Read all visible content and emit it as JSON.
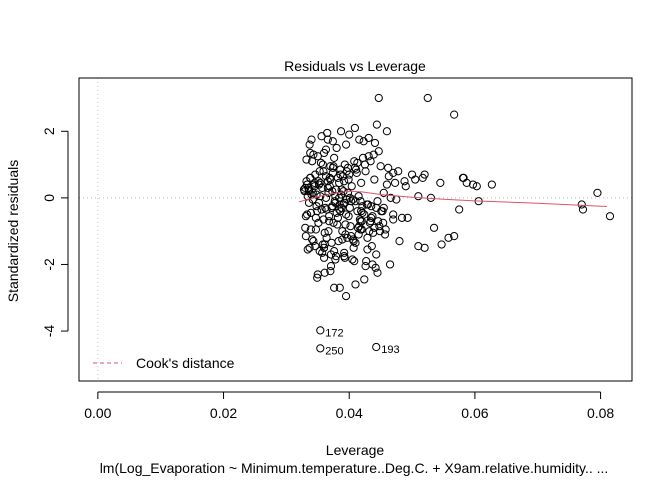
{
  "chart_data": {
    "type": "scatter",
    "title": "Residuals vs Leverage",
    "xlabel": "Leverage",
    "ylabel": "Standardized residuals",
    "subtitle": "lm(Log_Evaporation ~ Minimum.temperature..Deg.C. + X9am.relative.humidity.. ...",
    "xlim": [
      -0.003,
      0.085
    ],
    "ylim": [
      -5.5,
      3.6
    ],
    "x_ticks": [
      "0.00",
      "0.02",
      "0.04",
      "0.06",
      "0.08"
    ],
    "x_tick_values": [
      0.0,
      0.02,
      0.04,
      0.06,
      0.08
    ],
    "y_ticks": [
      "-4",
      "-2",
      "0",
      "2"
    ],
    "y_tick_values": [
      -4,
      -2,
      0,
      2
    ],
    "legend": {
      "label": "Cook's distance",
      "placement": "bottom-left",
      "color": "#df536b"
    },
    "reference_lines": {
      "horizontal_at": 0,
      "vertical_at": 0,
      "style": "dotted",
      "color": "#bebebe"
    },
    "smooth_color": "#df536b",
    "smooth": {
      "x": [
        0.032,
        0.034,
        0.036,
        0.038,
        0.04,
        0.042,
        0.045,
        0.05,
        0.055,
        0.06,
        0.07,
        0.081
      ],
      "y": [
        -0.12,
        -0.02,
        0.08,
        0.15,
        0.2,
        0.18,
        0.1,
        0.02,
        -0.04,
        -0.09,
        -0.16,
        -0.26
      ]
    },
    "labeled_points": [
      {
        "label": "172",
        "x": 0.0354,
        "y": -3.98
      },
      {
        "label": "250",
        "x": 0.0354,
        "y": -4.52
      },
      {
        "label": "193",
        "x": 0.0443,
        "y": -4.48
      }
    ],
    "points": {
      "x": [
        0.0447,
        0.0525,
        0.0567,
        0.0409,
        0.0444,
        0.046,
        0.0387,
        0.0365,
        0.04,
        0.0431,
        0.0416,
        0.034,
        0.0374,
        0.0423,
        0.0441,
        0.0395,
        0.0582,
        0.0587,
        0.0597,
        0.0627,
        0.0606,
        0.0575,
        0.052,
        0.0505,
        0.0488,
        0.0473,
        0.047,
        0.046,
        0.0455,
        0.049,
        0.0466,
        0.051,
        0.053,
        0.0535,
        0.0567,
        0.0475,
        0.0493,
        0.0455,
        0.0445,
        0.043,
        0.0421,
        0.0418,
        0.0394,
        0.0388,
        0.0449,
        0.0429,
        0.0436,
        0.0407,
        0.038,
        0.0363,
        0.036,
        0.0343,
        0.035,
        0.0376,
        0.0338,
        0.0332,
        0.0341,
        0.0355,
        0.0358,
        0.037,
        0.0398,
        0.0411,
        0.0426,
        0.0412,
        0.04,
        0.039,
        0.0382,
        0.037,
        0.0366,
        0.0354,
        0.0352,
        0.0345,
        0.033,
        0.0328,
        0.0336,
        0.0342,
        0.0348,
        0.0378,
        0.0384,
        0.0406,
        0.041,
        0.0392,
        0.0385,
        0.0373,
        0.0362,
        0.0356,
        0.0349,
        0.0339,
        0.0333,
        0.0331,
        0.0347,
        0.0359,
        0.0368,
        0.0375,
        0.0381,
        0.0402,
        0.0414,
        0.042,
        0.0432,
        0.0438,
        0.0415,
        0.0403,
        0.0397,
        0.0389,
        0.0383,
        0.0372,
        0.0361,
        0.0346,
        0.0337,
        0.0334,
        0.0353,
        0.0357,
        0.0371,
        0.0379,
        0.0393,
        0.0405,
        0.0427,
        0.0437,
        0.0442,
        0.0434,
        0.0425,
        0.0409,
        0.0396,
        0.0386,
        0.0369,
        0.0351,
        0.0344,
        0.0335,
        0.0329,
        0.034,
        0.0363,
        0.0377,
        0.0391,
        0.0401,
        0.0413,
        0.0424,
        0.0435,
        0.0446,
        0.045,
        0.0462,
        0.0478,
        0.05,
        0.0517,
        0.0545,
        0.0463,
        0.044,
        0.0419,
        0.0404,
        0.0388,
        0.0367,
        0.0354,
        0.0342,
        0.0336,
        0.0348,
        0.0364,
        0.038,
        0.0399,
        0.0417,
        0.0433,
        0.0448,
        0.0458,
        0.0439,
        0.0422,
        0.0408,
        0.0393,
        0.0374,
        0.0359,
        0.0346,
        0.0338,
        0.0332,
        0.0344,
        0.0357,
        0.0373,
        0.0387,
        0.0401,
        0.0418,
        0.0428,
        0.0443,
        0.0451,
        0.047,
        0.0484,
        0.0447,
        0.0431,
        0.0415,
        0.0396,
        0.0384,
        0.0368,
        0.0351,
        0.0339,
        0.0331,
        0.0343,
        0.036,
        0.0376,
        0.0392,
        0.0408,
        0.0426,
        0.0413,
        0.0386,
        0.0363,
        0.0345,
        0.0336,
        0.0334,
        0.0352,
        0.0372,
        0.0395,
        0.042,
        0.044,
        0.0457,
        0.048,
        0.051,
        0.052,
        0.0547,
        0.0558,
        0.0581,
        0.0603,
        0.077,
        0.0772,
        0.0795,
        0.0815,
        0.035,
        0.037,
        0.0385,
        0.0395,
        0.041,
        0.0424,
        0.0445,
        0.0465,
        0.0361,
        0.0349,
        0.0378,
        0.0392,
        0.0407,
        0.0366,
        0.0356,
        0.0337,
        0.0375,
        0.0399,
        0.0435,
        0.0453,
        0.047,
        0.0366,
        0.0378,
        0.0382,
        0.0361,
        0.0347,
        0.036,
        0.0371,
        0.0394,
        0.041,
        0.0429,
        0.0443,
        0.0353,
        0.0338,
        0.0333,
        0.0374,
        0.0384,
        0.0391,
        0.0403,
        0.0419,
        0.0434,
        0.0416,
        0.0389,
        0.0364,
        0.0358,
        0.0341,
        0.033,
        0.0369,
        0.0379,
        0.0398,
        0.0421,
        0.0437,
        0.0454,
        0.0376,
        0.0367,
        0.0386,
        0.0354,
        0.0392,
        0.0406,
        0.0418,
        0.0354,
        0.0443
      ],
      "y": [
        3.0,
        3.0,
        2.5,
        2.1,
        2.2,
        2.0,
        2.0,
        1.95,
        1.9,
        1.8,
        1.75,
        1.75,
        1.7,
        1.7,
        1.65,
        1.6,
        0.6,
        0.45,
        0.4,
        0.4,
        -0.1,
        -0.35,
        0.7,
        0.55,
        0.5,
        0.45,
        0.75,
        0.4,
        0.15,
        0.35,
        0.0,
        0.05,
        0.0,
        -0.9,
        -1.15,
        -0.05,
        -0.6,
        -0.3,
        -0.1,
        -0.2,
        -0.45,
        -0.7,
        -0.8,
        -0.3,
        -1.0,
        -1.2,
        -1.45,
        -1.3,
        1.5,
        1.45,
        1.35,
        1.3,
        1.25,
        1.2,
        1.35,
        1.15,
        1.1,
        1.05,
        1.0,
        0.95,
        0.9,
        0.85,
        0.8,
        0.75,
        0.7,
        0.65,
        0.6,
        0.55,
        0.5,
        0.45,
        0.4,
        0.35,
        0.3,
        0.25,
        0.2,
        0.15,
        0.1,
        0.05,
        0.0,
        -0.05,
        -0.1,
        -0.15,
        -0.2,
        -0.25,
        -0.3,
        -0.35,
        -0.4,
        -0.45,
        -0.5,
        -0.55,
        -0.6,
        -0.65,
        -0.7,
        -0.75,
        -0.8,
        -0.85,
        -0.9,
        -0.95,
        -1.0,
        -1.05,
        -1.1,
        -1.15,
        -1.2,
        -1.25,
        -1.3,
        -1.35,
        -1.4,
        -1.45,
        -1.5,
        -1.55,
        -1.6,
        -1.65,
        -1.7,
        -1.75,
        -1.8,
        -1.85,
        -1.9,
        -2.0,
        -2.1,
        1.1,
        1.0,
        0.9,
        0.8,
        0.7,
        0.6,
        0.5,
        0.4,
        0.3,
        0.2,
        0.1,
        0.0,
        -0.1,
        -0.2,
        -0.3,
        -0.4,
        -0.5,
        -0.6,
        -0.7,
        0.95,
        0.9,
        0.8,
        0.7,
        0.6,
        0.45,
        0.65,
        0.55,
        0.45,
        0.35,
        0.25,
        0.15,
        0.05,
        -0.05,
        -0.15,
        -0.25,
        -0.35,
        -0.45,
        -0.55,
        -0.65,
        -0.75,
        -0.85,
        -0.95,
        1.3,
        1.2,
        1.1,
        1.0,
        0.9,
        0.8,
        0.7,
        0.6,
        0.5,
        0.4,
        0.3,
        0.2,
        0.1,
        0.0,
        -0.1,
        -0.2,
        -0.3,
        -0.4,
        -0.5,
        -0.6,
        1.4,
        1.25,
        0.05,
        -0.05,
        -0.35,
        -0.55,
        -0.75,
        -0.95,
        -1.15,
        -1.3,
        -1.5,
        -1.6,
        -1.75,
        -1.9,
        -2.05,
        1.05,
        0.85,
        0.65,
        0.45,
        0.25,
        0.05,
        -0.15,
        -0.3,
        -0.5,
        -0.7,
        -0.9,
        -1.1,
        -1.3,
        -1.45,
        -1.5,
        -1.4,
        -1.2,
        0.6,
        0.35,
        -0.2,
        -0.35,
        0.15,
        -0.55,
        -2.3,
        -2.2,
        -2.7,
        -2.95,
        -2.6,
        -2.45,
        -2.25,
        -2.0,
        -2.25,
        -2.4,
        -1.85,
        -1.65,
        -1.5,
        1.75,
        1.85,
        1.6,
        0.95,
        0.55,
        -0.25,
        -0.4,
        -0.65,
        0.3,
        -0.15,
        -0.6,
        -1.05,
        -0.95,
        -1.8,
        -2.05,
        -1.1,
        -1.35,
        -1.55,
        -1.7,
        0.8,
        0.6,
        0.4,
        0.75,
        0.45,
        0.2,
        -0.1,
        -0.4,
        -0.7,
        -0.85,
        -1.0,
        -1.2,
        -1.4,
        -1.25,
        -0.9,
        0.35,
        0.25,
        0.15,
        -0.25,
        -0.55,
        -0.75,
        -2.7,
        -1.0,
        -0.4,
        -3.98,
        0.5,
        -1.25,
        -0.95,
        -4.52,
        -4.48
      ]
    }
  }
}
